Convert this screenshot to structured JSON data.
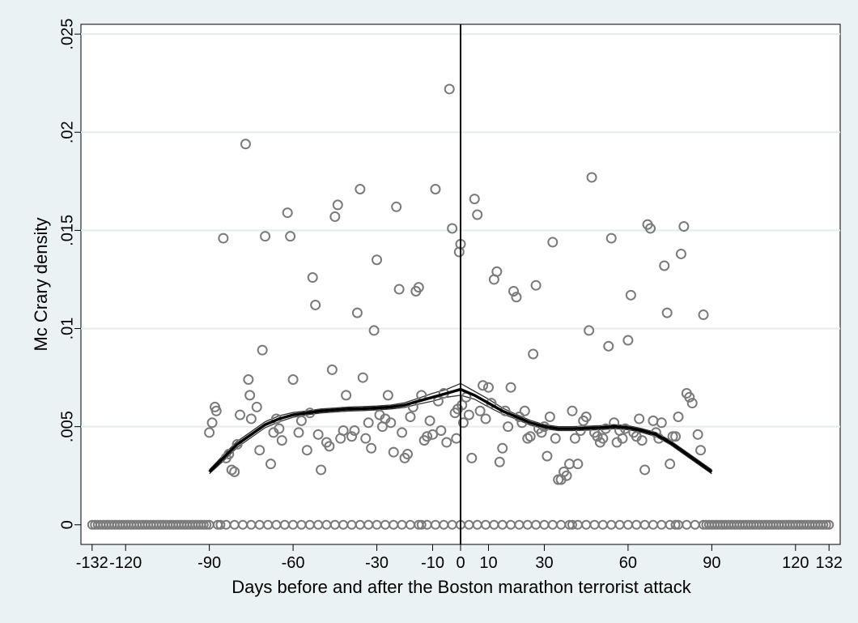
{
  "chart_data": {
    "type": "scatter",
    "title": "",
    "xlabel": "Days before and after the Boston marathon terrorist attack",
    "ylabel": "Mc Crary density",
    "xlim": [
      -136,
      136
    ],
    "ylim": [
      -0.001,
      0.0255
    ],
    "x_ticks": [
      -132,
      -120,
      -90,
      -60,
      -30,
      -10,
      0,
      10,
      30,
      60,
      90,
      120,
      132
    ],
    "x_tick_labels": [
      "-132",
      "-120",
      "-90",
      "-60",
      "-30",
      "-10",
      "0",
      "10",
      "30",
      "60",
      "90",
      "120",
      "132"
    ],
    "y_ticks": [
      0,
      0.005,
      0.01,
      0.015,
      0.02,
      0.025
    ],
    "y_tick_labels": [
      "0",
      ".005",
      ".01",
      ".015",
      ".02",
      ".025"
    ],
    "grid": true,
    "cutoff_x": 0,
    "colors": {
      "points": "#7a7a7a",
      "fit": "#000000",
      "ci": "#333333",
      "grid": "#e4ecec",
      "cutoff": "#000000"
    },
    "zero_points_x": [
      -132,
      -131,
      -130,
      -129,
      -128,
      -127,
      -126,
      -125,
      -124,
      -123,
      -122,
      -121,
      -120,
      -119,
      -118,
      -117,
      -116,
      -115,
      -114,
      -113,
      -112,
      -111,
      -110,
      -109,
      -108,
      -107,
      -106,
      -105,
      -104,
      -103,
      -102,
      -101,
      -100,
      -99,
      -98,
      -97,
      -96,
      -95,
      -94,
      -93,
      -92,
      -91,
      -90,
      -87,
      -86,
      -84,
      -81,
      -78,
      -75,
      -72,
      -69,
      -66,
      -63,
      -60,
      -57,
      -54,
      -51,
      -48,
      -45,
      -42,
      -39,
      -36,
      -33,
      -30,
      -27,
      -24,
      -21,
      -18,
      -15,
      -14,
      -12,
      -9,
      -6,
      -3,
      0,
      3,
      6,
      9,
      12,
      15,
      18,
      21,
      24,
      27,
      30,
      33,
      36,
      39,
      40,
      42,
      45,
      48,
      51,
      54,
      57,
      60,
      63,
      66,
      69,
      72,
      75,
      77,
      78,
      81,
      84,
      87,
      88,
      89,
      90,
      91,
      92,
      93,
      94,
      95,
      96,
      97,
      98,
      99,
      100,
      101,
      102,
      103,
      104,
      105,
      106,
      107,
      108,
      109,
      110,
      111,
      112,
      113,
      114,
      115,
      116,
      117,
      118,
      119,
      120,
      121,
      122,
      123,
      124,
      125,
      126,
      127,
      128,
      129,
      130,
      131,
      132
    ],
    "points": [
      {
        "x": -90,
        "y": 0.0047
      },
      {
        "x": -89,
        "y": 0.0052
      },
      {
        "x": -88,
        "y": 0.006
      },
      {
        "x": -87.5,
        "y": 0.0058
      },
      {
        "x": -85,
        "y": 0.0146
      },
      {
        "x": -84,
        "y": 0.0034
      },
      {
        "x": -83,
        "y": 0.0036
      },
      {
        "x": -82,
        "y": 0.0028
      },
      {
        "x": -81,
        "y": 0.0027
      },
      {
        "x": -80,
        "y": 0.0041
      },
      {
        "x": -79,
        "y": 0.0056
      },
      {
        "x": -77,
        "y": 0.0194
      },
      {
        "x": -76,
        "y": 0.0074
      },
      {
        "x": -75.5,
        "y": 0.0066
      },
      {
        "x": -75,
        "y": 0.0054
      },
      {
        "x": -73,
        "y": 0.006
      },
      {
        "x": -72,
        "y": 0.0038
      },
      {
        "x": -71,
        "y": 0.0089
      },
      {
        "x": -70,
        "y": 0.0147
      },
      {
        "x": -68,
        "y": 0.0031
      },
      {
        "x": -67,
        "y": 0.0047
      },
      {
        "x": -66,
        "y": 0.0054
      },
      {
        "x": -65,
        "y": 0.0049
      },
      {
        "x": -64,
        "y": 0.0043
      },
      {
        "x": -62,
        "y": 0.0159
      },
      {
        "x": -61,
        "y": 0.0147
      },
      {
        "x": -60,
        "y": 0.0074
      },
      {
        "x": -58,
        "y": 0.0047
      },
      {
        "x": -57,
        "y": 0.0053
      },
      {
        "x": -55,
        "y": 0.0038
      },
      {
        "x": -54,
        "y": 0.0057
      },
      {
        "x": -53,
        "y": 0.0126
      },
      {
        "x": -52,
        "y": 0.0112
      },
      {
        "x": -51,
        "y": 0.0046
      },
      {
        "x": -50,
        "y": 0.0028
      },
      {
        "x": -48,
        "y": 0.0042
      },
      {
        "x": -47,
        "y": 0.004
      },
      {
        "x": -46,
        "y": 0.0079
      },
      {
        "x": -45,
        "y": 0.0157
      },
      {
        "x": -44,
        "y": 0.0163
      },
      {
        "x": -43,
        "y": 0.0044
      },
      {
        "x": -42,
        "y": 0.0048
      },
      {
        "x": -41,
        "y": 0.0066
      },
      {
        "x": -39,
        "y": 0.0045
      },
      {
        "x": -38,
        "y": 0.0048
      },
      {
        "x": -37,
        "y": 0.0108
      },
      {
        "x": -36,
        "y": 0.0171
      },
      {
        "x": -35,
        "y": 0.0075
      },
      {
        "x": -34,
        "y": 0.0044
      },
      {
        "x": -33,
        "y": 0.0052
      },
      {
        "x": -32,
        "y": 0.0039
      },
      {
        "x": -31,
        "y": 0.0099
      },
      {
        "x": -30,
        "y": 0.0135
      },
      {
        "x": -29,
        "y": 0.0056
      },
      {
        "x": -28,
        "y": 0.005
      },
      {
        "x": -27,
        "y": 0.0054
      },
      {
        "x": -26,
        "y": 0.0066
      },
      {
        "x": -25,
        "y": 0.0052
      },
      {
        "x": -24,
        "y": 0.0037
      },
      {
        "x": -23,
        "y": 0.0162
      },
      {
        "x": -22,
        "y": 0.012
      },
      {
        "x": -21,
        "y": 0.0047
      },
      {
        "x": -20,
        "y": 0.0034
      },
      {
        "x": -19,
        "y": 0.0036
      },
      {
        "x": -18,
        "y": 0.0055
      },
      {
        "x": -17,
        "y": 0.006
      },
      {
        "x": -16,
        "y": 0.0119
      },
      {
        "x": -15,
        "y": 0.0121
      },
      {
        "x": -14,
        "y": 0.0066
      },
      {
        "x": -13,
        "y": 0.0043
      },
      {
        "x": -12,
        "y": 0.0045
      },
      {
        "x": -11,
        "y": 0.0053
      },
      {
        "x": -10,
        "y": 0.0046
      },
      {
        "x": -9,
        "y": 0.0171
      },
      {
        "x": -8,
        "y": 0.0063
      },
      {
        "x": -7,
        "y": 0.0048
      },
      {
        "x": -6,
        "y": 0.0067
      },
      {
        "x": -5,
        "y": 0.0042
      },
      {
        "x": -4,
        "y": 0.0222
      },
      {
        "x": -3,
        "y": 0.0151
      },
      {
        "x": -2,
        "y": 0.0057
      },
      {
        "x": -1.5,
        "y": 0.0044
      },
      {
        "x": -1,
        "y": 0.0059
      },
      {
        "x": -0.5,
        "y": 0.0139
      },
      {
        "x": 0,
        "y": 0.0143
      },
      {
        "x": 0.5,
        "y": 0.0061
      },
      {
        "x": 1,
        "y": 0.0052
      },
      {
        "x": 2,
        "y": 0.0065
      },
      {
        "x": 3,
        "y": 0.0056
      },
      {
        "x": 4,
        "y": 0.0034
      },
      {
        "x": 5,
        "y": 0.0166
      },
      {
        "x": 6,
        "y": 0.0158
      },
      {
        "x": 7,
        "y": 0.0058
      },
      {
        "x": 8,
        "y": 0.0071
      },
      {
        "x": 9,
        "y": 0.0054
      },
      {
        "x": 10,
        "y": 0.007
      },
      {
        "x": 11,
        "y": 0.0062
      },
      {
        "x": 12,
        "y": 0.0125
      },
      {
        "x": 13,
        "y": 0.0129
      },
      {
        "x": 14,
        "y": 0.0032
      },
      {
        "x": 15,
        "y": 0.0039
      },
      {
        "x": 16,
        "y": 0.0058
      },
      {
        "x": 17,
        "y": 0.005
      },
      {
        "x": 18,
        "y": 0.007
      },
      {
        "x": 19,
        "y": 0.0119
      },
      {
        "x": 20,
        "y": 0.0116
      },
      {
        "x": 21,
        "y": 0.0055
      },
      {
        "x": 22,
        "y": 0.0052
      },
      {
        "x": 23,
        "y": 0.0058
      },
      {
        "x": 24,
        "y": 0.0044
      },
      {
        "x": 25,
        "y": 0.0045
      },
      {
        "x": 26,
        "y": 0.0087
      },
      {
        "x": 27,
        "y": 0.0122
      },
      {
        "x": 28,
        "y": 0.0049
      },
      {
        "x": 29,
        "y": 0.0047
      },
      {
        "x": 30,
        "y": 0.005
      },
      {
        "x": 31,
        "y": 0.0035
      },
      {
        "x": 32,
        "y": 0.0055
      },
      {
        "x": 33,
        "y": 0.0144
      },
      {
        "x": 34,
        "y": 0.0044
      },
      {
        "x": 35,
        "y": 0.0023
      },
      {
        "x": 36,
        "y": 0.0023
      },
      {
        "x": 37,
        "y": 0.0027
      },
      {
        "x": 38,
        "y": 0.0025
      },
      {
        "x": 39,
        "y": 0.0031
      },
      {
        "x": 40,
        "y": 0.0058
      },
      {
        "x": 41,
        "y": 0.0044
      },
      {
        "x": 42,
        "y": 0.0031
      },
      {
        "x": 43,
        "y": 0.0048
      },
      {
        "x": 44,
        "y": 0.0053
      },
      {
        "x": 45,
        "y": 0.0055
      },
      {
        "x": 46,
        "y": 0.0099
      },
      {
        "x": 47,
        "y": 0.0177
      },
      {
        "x": 48,
        "y": 0.0047
      },
      {
        "x": 49,
        "y": 0.0045
      },
      {
        "x": 50,
        "y": 0.0042
      },
      {
        "x": 51,
        "y": 0.0044
      },
      {
        "x": 52,
        "y": 0.0049
      },
      {
        "x": 53,
        "y": 0.0091
      },
      {
        "x": 54,
        "y": 0.0146
      },
      {
        "x": 55,
        "y": 0.0052
      },
      {
        "x": 56,
        "y": 0.0042
      },
      {
        "x": 57,
        "y": 0.0048
      },
      {
        "x": 58,
        "y": 0.0044
      },
      {
        "x": 59,
        "y": 0.0049
      },
      {
        "x": 60,
        "y": 0.0094
      },
      {
        "x": 61,
        "y": 0.0117
      },
      {
        "x": 62,
        "y": 0.0047
      },
      {
        "x": 63,
        "y": 0.0045
      },
      {
        "x": 64,
        "y": 0.0054
      },
      {
        "x": 65,
        "y": 0.0043
      },
      {
        "x": 66,
        "y": 0.0028
      },
      {
        "x": 67,
        "y": 0.0153
      },
      {
        "x": 68,
        "y": 0.0151
      },
      {
        "x": 69,
        "y": 0.0053
      },
      {
        "x": 70,
        "y": 0.0047
      },
      {
        "x": 71,
        "y": 0.0044
      },
      {
        "x": 72,
        "y": 0.0052
      },
      {
        "x": 73,
        "y": 0.0132
      },
      {
        "x": 74,
        "y": 0.0108
      },
      {
        "x": 75,
        "y": 0.0031
      },
      {
        "x": 76,
        "y": 0.0045
      },
      {
        "x": 77,
        "y": 0.0045
      },
      {
        "x": 78,
        "y": 0.0055
      },
      {
        "x": 79,
        "y": 0.0138
      },
      {
        "x": 80,
        "y": 0.0152
      },
      {
        "x": 81,
        "y": 0.0067
      },
      {
        "x": 82,
        "y": 0.0065
      },
      {
        "x": 83,
        "y": 0.0062
      },
      {
        "x": 85,
        "y": 0.0046
      },
      {
        "x": 86,
        "y": 0.0038
      },
      {
        "x": 87,
        "y": 0.0107
      }
    ],
    "fit_left": {
      "x": [
        -90,
        -85,
        -80,
        -75,
        -70,
        -65,
        -60,
        -55,
        -50,
        -45,
        -40,
        -35,
        -30,
        -25,
        -20,
        -15,
        -10,
        -5,
        0
      ],
      "y": [
        0.0027,
        0.0034,
        0.0041,
        0.0046,
        0.0051,
        0.0054,
        0.0056,
        0.0057,
        0.0058,
        0.00585,
        0.0059,
        0.00592,
        0.00595,
        0.006,
        0.0061,
        0.0063,
        0.0065,
        0.0067,
        0.0069
      ],
      "ci_low": [
        0.0026,
        0.00325,
        0.00395,
        0.00445,
        0.00495,
        0.00525,
        0.00548,
        0.0056,
        0.0057,
        0.00575,
        0.0058,
        0.00582,
        0.00585,
        0.0059,
        0.00598,
        0.00615,
        0.0063,
        0.0065,
        0.0066
      ],
      "ci_high": [
        0.0028,
        0.00355,
        0.00425,
        0.00475,
        0.00525,
        0.00555,
        0.00572,
        0.0058,
        0.0059,
        0.00595,
        0.006,
        0.00602,
        0.00605,
        0.0061,
        0.00622,
        0.00645,
        0.0067,
        0.0069,
        0.0072
      ]
    },
    "fit_right": {
      "x": [
        0,
        5,
        10,
        15,
        20,
        25,
        30,
        35,
        40,
        45,
        50,
        55,
        60,
        65,
        70,
        75,
        80,
        85,
        90
      ],
      "y": [
        0.0069,
        0.0066,
        0.0062,
        0.0058,
        0.0055,
        0.0052,
        0.005,
        0.0049,
        0.0049,
        0.00492,
        0.00495,
        0.005,
        0.00495,
        0.0048,
        0.0046,
        0.0042,
        0.0037,
        0.0032,
        0.0027
      ],
      "ci_low": [
        0.0066,
        0.0064,
        0.006,
        0.00565,
        0.00538,
        0.00508,
        0.0049,
        0.0048,
        0.0048,
        0.00482,
        0.00485,
        0.0049,
        0.00485,
        0.0047,
        0.0045,
        0.0041,
        0.0036,
        0.0031,
        0.0026
      ],
      "ci_high": [
        0.0072,
        0.0068,
        0.0064,
        0.00595,
        0.00562,
        0.00532,
        0.0051,
        0.005,
        0.005,
        0.00502,
        0.00505,
        0.0051,
        0.00505,
        0.0049,
        0.0047,
        0.0043,
        0.0038,
        0.0033,
        0.0028
      ]
    }
  }
}
